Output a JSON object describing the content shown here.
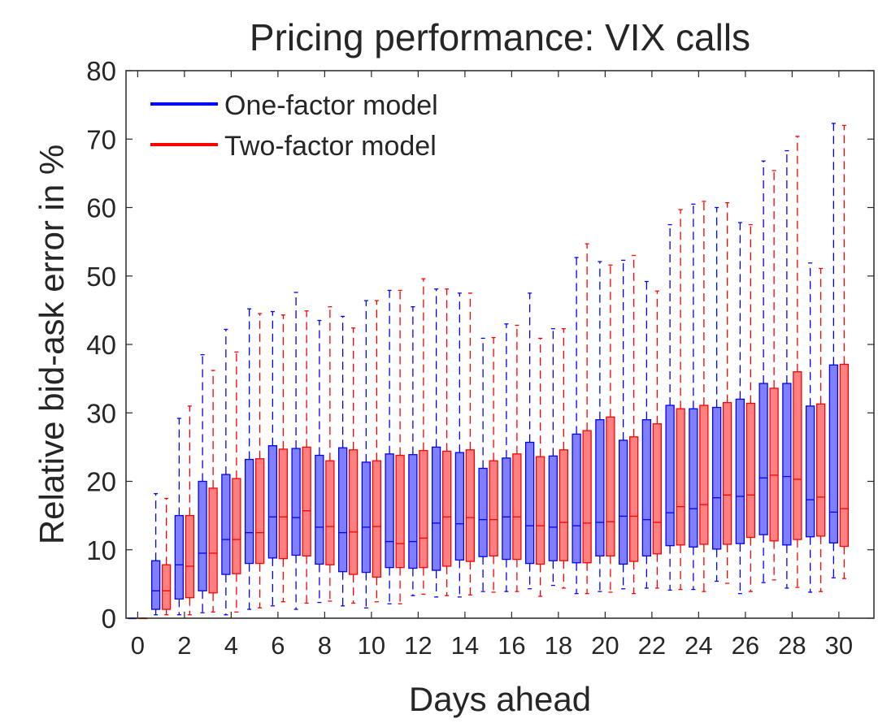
{
  "chart_data": {
    "type": "box",
    "title": "Pricing performance: VIX calls",
    "xlabel": "Days ahead",
    "ylabel": "Relative bid-ask error in %",
    "xlim": [
      -0.5,
      31.5
    ],
    "ylim": [
      0,
      80
    ],
    "xticks": [
      0,
      2,
      4,
      6,
      8,
      10,
      12,
      14,
      16,
      18,
      20,
      22,
      24,
      26,
      28,
      30
    ],
    "yticks": [
      0,
      10,
      20,
      30,
      40,
      50,
      60,
      70,
      80
    ],
    "legend_position": "top-left",
    "series": [
      {
        "name": "One-factor model",
        "color": "#0000ff",
        "fill": "#8080ff",
        "boxes": [
          {
            "day": 0,
            "whislo": 0,
            "q1": 0,
            "med": 0,
            "q3": 0,
            "whishi": 0
          },
          {
            "day": 1,
            "whislo": 0.5,
            "q1": 1.3,
            "med": 4,
            "q3": 8.4,
            "whishi": 18.2
          },
          {
            "day": 2,
            "whislo": 0.5,
            "q1": 2.8,
            "med": 7.8,
            "q3": 15,
            "whishi": 29.2
          },
          {
            "day": 3,
            "whislo": 0.8,
            "q1": 4,
            "med": 9.5,
            "q3": 20,
            "whishi": 38.5
          },
          {
            "day": 4,
            "whislo": 0.5,
            "q1": 6.4,
            "med": 11.5,
            "q3": 21,
            "whishi": 42.2
          },
          {
            "day": 5,
            "whislo": 1.3,
            "q1": 8,
            "med": 12.5,
            "q3": 23.2,
            "whishi": 45.2
          },
          {
            "day": 6,
            "whislo": 1.8,
            "q1": 8.8,
            "med": 14.8,
            "q3": 25.2,
            "whishi": 44.8
          },
          {
            "day": 7,
            "whislo": 1.3,
            "q1": 9.2,
            "med": 14.7,
            "q3": 24.8,
            "whishi": 47.6
          },
          {
            "day": 8,
            "whislo": 2.3,
            "q1": 7.9,
            "med": 13.3,
            "q3": 23.8,
            "whishi": 43.5
          },
          {
            "day": 9,
            "whislo": 1.8,
            "q1": 6.8,
            "med": 12.5,
            "q3": 24.9,
            "whishi": 44.1
          },
          {
            "day": 10,
            "whislo": 1.5,
            "q1": 6.7,
            "med": 13.3,
            "q3": 22.8,
            "whishi": 46.4
          },
          {
            "day": 11,
            "whislo": 2.1,
            "q1": 7.4,
            "med": 11.2,
            "q3": 24,
            "whishi": 47.9
          },
          {
            "day": 12,
            "whislo": 3.3,
            "q1": 7.3,
            "med": 11.2,
            "q3": 23.9,
            "whishi": 45.5
          },
          {
            "day": 13,
            "whislo": 3.1,
            "q1": 7,
            "med": 13.9,
            "q3": 25,
            "whishi": 48.1
          },
          {
            "day": 14,
            "whislo": 3.1,
            "q1": 8.5,
            "med": 13.8,
            "q3": 24.2,
            "whishi": 47.5
          },
          {
            "day": 15,
            "whislo": 3.9,
            "q1": 9,
            "med": 14.4,
            "q3": 21.9,
            "whishi": 40.9
          },
          {
            "day": 16,
            "whislo": 3.9,
            "q1": 8.6,
            "med": 14.8,
            "q3": 23.4,
            "whishi": 43
          },
          {
            "day": 17,
            "whislo": 4.3,
            "q1": 8,
            "med": 13.5,
            "q3": 25.7,
            "whishi": 47.5
          },
          {
            "day": 18,
            "whislo": 4.8,
            "q1": 8.4,
            "med": 13.3,
            "q3": 23.7,
            "whishi": 42.3
          },
          {
            "day": 19,
            "whislo": 3.6,
            "q1": 8.1,
            "med": 13.5,
            "q3": 26.9,
            "whishi": 52.7
          },
          {
            "day": 20,
            "whislo": 3.9,
            "q1": 9.1,
            "med": 14,
            "q3": 29,
            "whishi": 52.1
          },
          {
            "day": 21,
            "whislo": 4.3,
            "q1": 7.9,
            "med": 14.9,
            "q3": 26,
            "whishi": 52.3
          },
          {
            "day": 22,
            "whislo": 4.4,
            "q1": 9.1,
            "med": 14.4,
            "q3": 29,
            "whishi": 49.2
          },
          {
            "day": 23,
            "whislo": 4.1,
            "q1": 10.6,
            "med": 15.4,
            "q3": 31.1,
            "whishi": 57.5
          },
          {
            "day": 24,
            "whislo": 4.2,
            "q1": 10.4,
            "med": 16,
            "q3": 30.6,
            "whishi": 60.5
          },
          {
            "day": 25,
            "whislo": 5.4,
            "q1": 10.1,
            "med": 17.6,
            "q3": 30.8,
            "whishi": 60
          },
          {
            "day": 26,
            "whislo": 3.6,
            "q1": 10.9,
            "med": 17.8,
            "q3": 32,
            "whishi": 57.8
          },
          {
            "day": 27,
            "whislo": 5.2,
            "q1": 12.2,
            "med": 20.5,
            "q3": 34.3,
            "whishi": 66.8
          },
          {
            "day": 28,
            "whislo": 4.4,
            "q1": 10.7,
            "med": 20.7,
            "q3": 34.3,
            "whishi": 68.3
          },
          {
            "day": 29,
            "whislo": 3.8,
            "q1": 11.9,
            "med": 17.3,
            "q3": 31,
            "whishi": 51.9
          },
          {
            "day": 30,
            "whislo": 5.9,
            "q1": 11,
            "med": 15.5,
            "q3": 37,
            "whishi": 72.3
          }
        ]
      },
      {
        "name": "Two-factor model",
        "color": "#ff0000",
        "fill": "#ff8080",
        "boxes": [
          {
            "day": 0,
            "whislo": 0,
            "q1": 0,
            "med": 0,
            "q3": 0,
            "whishi": 0
          },
          {
            "day": 1,
            "whislo": 0.5,
            "q1": 1.3,
            "med": 4,
            "q3": 7.8,
            "whishi": 17.5
          },
          {
            "day": 2,
            "whislo": 0.5,
            "q1": 3,
            "med": 7.6,
            "q3": 15,
            "whishi": 31
          },
          {
            "day": 3,
            "whislo": 0.9,
            "q1": 3.7,
            "med": 9.5,
            "q3": 19,
            "whishi": 36.2
          },
          {
            "day": 4,
            "whislo": 0.9,
            "q1": 6.5,
            "med": 11.5,
            "q3": 20.4,
            "whishi": 38.9
          },
          {
            "day": 5,
            "whislo": 1.5,
            "q1": 8,
            "med": 12.5,
            "q3": 23.3,
            "whishi": 44.5
          },
          {
            "day": 6,
            "whislo": 2.4,
            "q1": 8.7,
            "med": 14.8,
            "q3": 24.7,
            "whishi": 44.3
          },
          {
            "day": 7,
            "whislo": 2.2,
            "q1": 9.1,
            "med": 15.7,
            "q3": 25,
            "whishi": 44.9
          },
          {
            "day": 8,
            "whislo": 2.5,
            "q1": 7.8,
            "med": 13.4,
            "q3": 23,
            "whishi": 45.5
          },
          {
            "day": 9,
            "whislo": 2.2,
            "q1": 6.4,
            "med": 12.6,
            "q3": 24.6,
            "whishi": 42.4
          },
          {
            "day": 10,
            "whislo": 2.4,
            "q1": 6,
            "med": 13.4,
            "q3": 23,
            "whishi": 46.4
          },
          {
            "day": 11,
            "whislo": 2.1,
            "q1": 7.4,
            "med": 10.9,
            "q3": 23.8,
            "whishi": 47.9
          },
          {
            "day": 12,
            "whislo": 3.5,
            "q1": 7.4,
            "med": 11.7,
            "q3": 24.5,
            "whishi": 49.6
          },
          {
            "day": 13,
            "whislo": 3.3,
            "q1": 7.6,
            "med": 14.8,
            "q3": 24.4,
            "whishi": 48.1
          },
          {
            "day": 14,
            "whislo": 3.4,
            "q1": 8.3,
            "med": 14.7,
            "q3": 24.6,
            "whishi": 47.5
          },
          {
            "day": 15,
            "whislo": 3.8,
            "q1": 9.1,
            "med": 14.4,
            "q3": 23,
            "whishi": 41
          },
          {
            "day": 16,
            "whislo": 3.9,
            "q1": 8.6,
            "med": 14.8,
            "q3": 24,
            "whishi": 42.8
          },
          {
            "day": 17,
            "whislo": 3.2,
            "q1": 7.9,
            "med": 13.5,
            "q3": 23.6,
            "whishi": 40.9
          },
          {
            "day": 18,
            "whislo": 4.4,
            "q1": 8.4,
            "med": 14,
            "q3": 24.6,
            "whishi": 42.3
          },
          {
            "day": 19,
            "whislo": 3.6,
            "q1": 8.1,
            "med": 13.9,
            "q3": 27.4,
            "whishi": 54.7
          },
          {
            "day": 20,
            "whislo": 3.8,
            "q1": 9.1,
            "med": 14.1,
            "q3": 29.4,
            "whishi": 51.6
          },
          {
            "day": 21,
            "whislo": 3.6,
            "q1": 8.3,
            "med": 14.9,
            "q3": 26.5,
            "whishi": 53
          },
          {
            "day": 22,
            "whislo": 4.4,
            "q1": 9.4,
            "med": 14,
            "q3": 28.4,
            "whishi": 47.8
          },
          {
            "day": 23,
            "whislo": 4.2,
            "q1": 10.7,
            "med": 16.3,
            "q3": 30.6,
            "whishi": 59.7
          },
          {
            "day": 24,
            "whislo": 3.9,
            "q1": 10.8,
            "med": 16.6,
            "q3": 31.1,
            "whishi": 60.9
          },
          {
            "day": 25,
            "whislo": 5.1,
            "q1": 10.8,
            "med": 18,
            "q3": 31.5,
            "whishi": 60.7
          },
          {
            "day": 26,
            "whislo": 3.9,
            "q1": 11.8,
            "med": 18,
            "q3": 31.4,
            "whishi": 57.5
          },
          {
            "day": 27,
            "whislo": 5.6,
            "q1": 11.3,
            "med": 20.9,
            "q3": 33.6,
            "whishi": 65.4
          },
          {
            "day": 28,
            "whislo": 4.5,
            "q1": 11.5,
            "med": 20.3,
            "q3": 36,
            "whishi": 70.4
          },
          {
            "day": 29,
            "whislo": 3.9,
            "q1": 12,
            "med": 17.7,
            "q3": 31.3,
            "whishi": 51.1
          },
          {
            "day": 30,
            "whislo": 5.8,
            "q1": 10.5,
            "med": 16,
            "q3": 37.1,
            "whishi": 72
          }
        ]
      }
    ]
  }
}
